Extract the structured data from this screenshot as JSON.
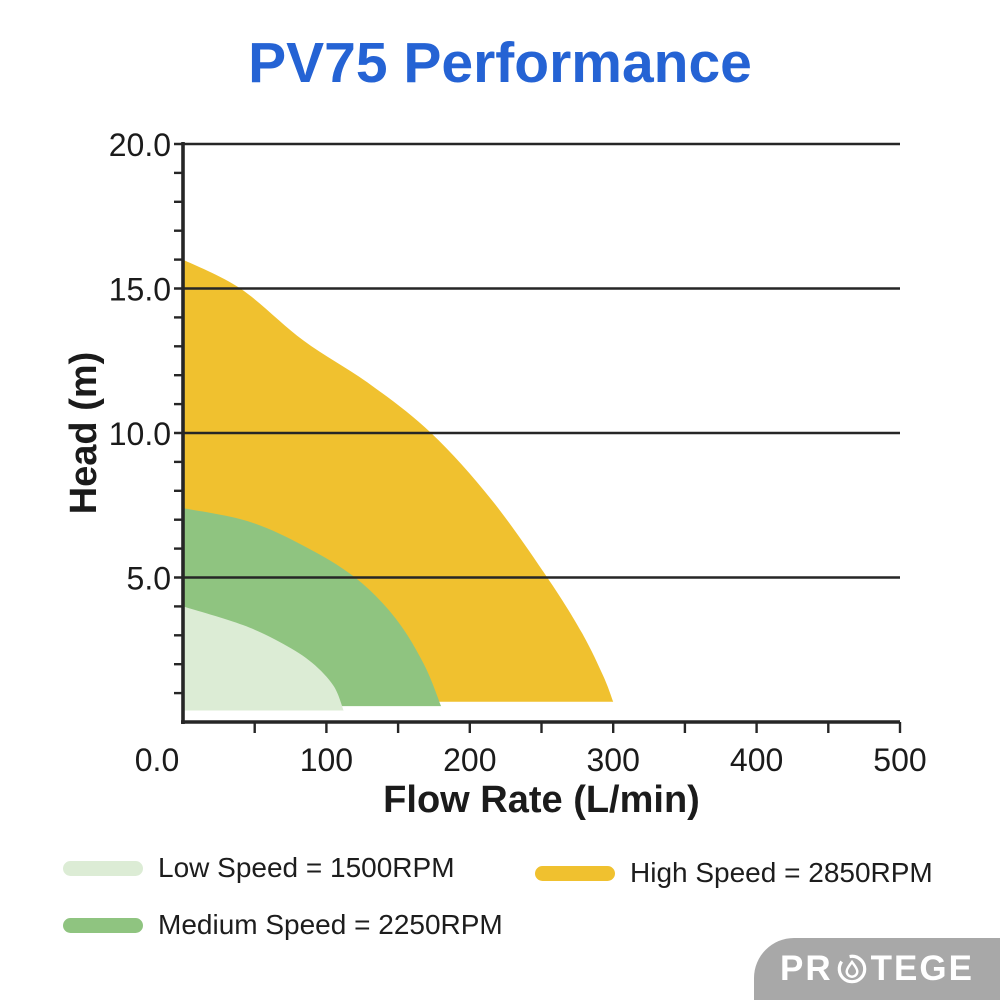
{
  "title": "PV75 Performance",
  "chart_data": {
    "type": "area",
    "title": "PV75 Performance",
    "xlabel": "Flow Rate (L/min)",
    "ylabel": "Head (m)",
    "xlim": [
      0,
      500
    ],
    "ylim": [
      0,
      20
    ],
    "x_ticks": [
      {
        "value": 0,
        "label": "0.0"
      },
      {
        "value": 100,
        "label": "100"
      },
      {
        "value": 200,
        "label": "200"
      },
      {
        "value": 300,
        "label": "300"
      },
      {
        "value": 400,
        "label": "400"
      },
      {
        "value": 500,
        "label": "500"
      }
    ],
    "y_ticks": [
      {
        "value": 5,
        "label": "5.0"
      },
      {
        "value": 10,
        "label": "10.0"
      },
      {
        "value": 15,
        "label": "15.0"
      },
      {
        "value": 20,
        "label": "20.0"
      }
    ],
    "x_minor_tick_step": 50,
    "y_minor_tick_step": 1,
    "grid": "horizontal lines at y major ticks only",
    "legend_position": "below chart",
    "series": [
      {
        "name": "High Speed = 2850RPM",
        "rpm": 2850,
        "color": "#f0c12f",
        "baseline_head": 0.7,
        "max_flow": 300,
        "shutoff_head": 16.0,
        "points": [
          [
            0,
            16
          ],
          [
            40,
            15
          ],
          [
            84,
            13.2
          ],
          [
            130,
            11.7
          ],
          [
            173,
            10
          ],
          [
            215,
            7.7
          ],
          [
            254,
            5
          ],
          [
            278,
            3.1
          ],
          [
            293,
            1.6
          ],
          [
            300,
            0.7
          ]
        ]
      },
      {
        "name": "Medium Speed = 2250RPM",
        "rpm": 2250,
        "color": "#8fc480",
        "baseline_head": 0.55,
        "max_flow": 180,
        "shutoff_head": 7.4,
        "points": [
          [
            0,
            7.4
          ],
          [
            45,
            6.95
          ],
          [
            84,
            6.1
          ],
          [
            120,
            5
          ],
          [
            148,
            3.6
          ],
          [
            168,
            2.0
          ],
          [
            180,
            0.55
          ]
        ]
      },
      {
        "name": "Low Speed = 1500RPM",
        "rpm": 1500,
        "color": "#dcecd5",
        "baseline_head": 0.4,
        "max_flow": 112,
        "shutoff_head": 4.0,
        "points": [
          [
            0,
            4
          ],
          [
            42,
            3.35
          ],
          [
            70,
            2.7
          ],
          [
            90,
            2.05
          ],
          [
            105,
            1.25
          ],
          [
            112,
            0.4
          ]
        ]
      }
    ]
  },
  "legend": {
    "items": [
      {
        "label": "Low Speed = 1500RPM",
        "color": "#dcecd5"
      },
      {
        "label": "Medium Speed = 2250RPM",
        "color": "#8fc480"
      },
      {
        "label": "High Speed = 2850RPM",
        "color": "#f0c12f"
      }
    ]
  },
  "logo": {
    "name": "PROTEGE",
    "text_pre": "PR",
    "text_post": "TEGE"
  },
  "colors": {
    "title": "#2563d4",
    "axis": "#262626",
    "tick_text": "#1b1b1b",
    "background": "#ffffff",
    "series_high": "#f0c12f",
    "series_medium": "#8fc480",
    "series_low": "#dcecd5",
    "logo_bg": "#a8a8a8",
    "logo_text": "#ffffff"
  }
}
